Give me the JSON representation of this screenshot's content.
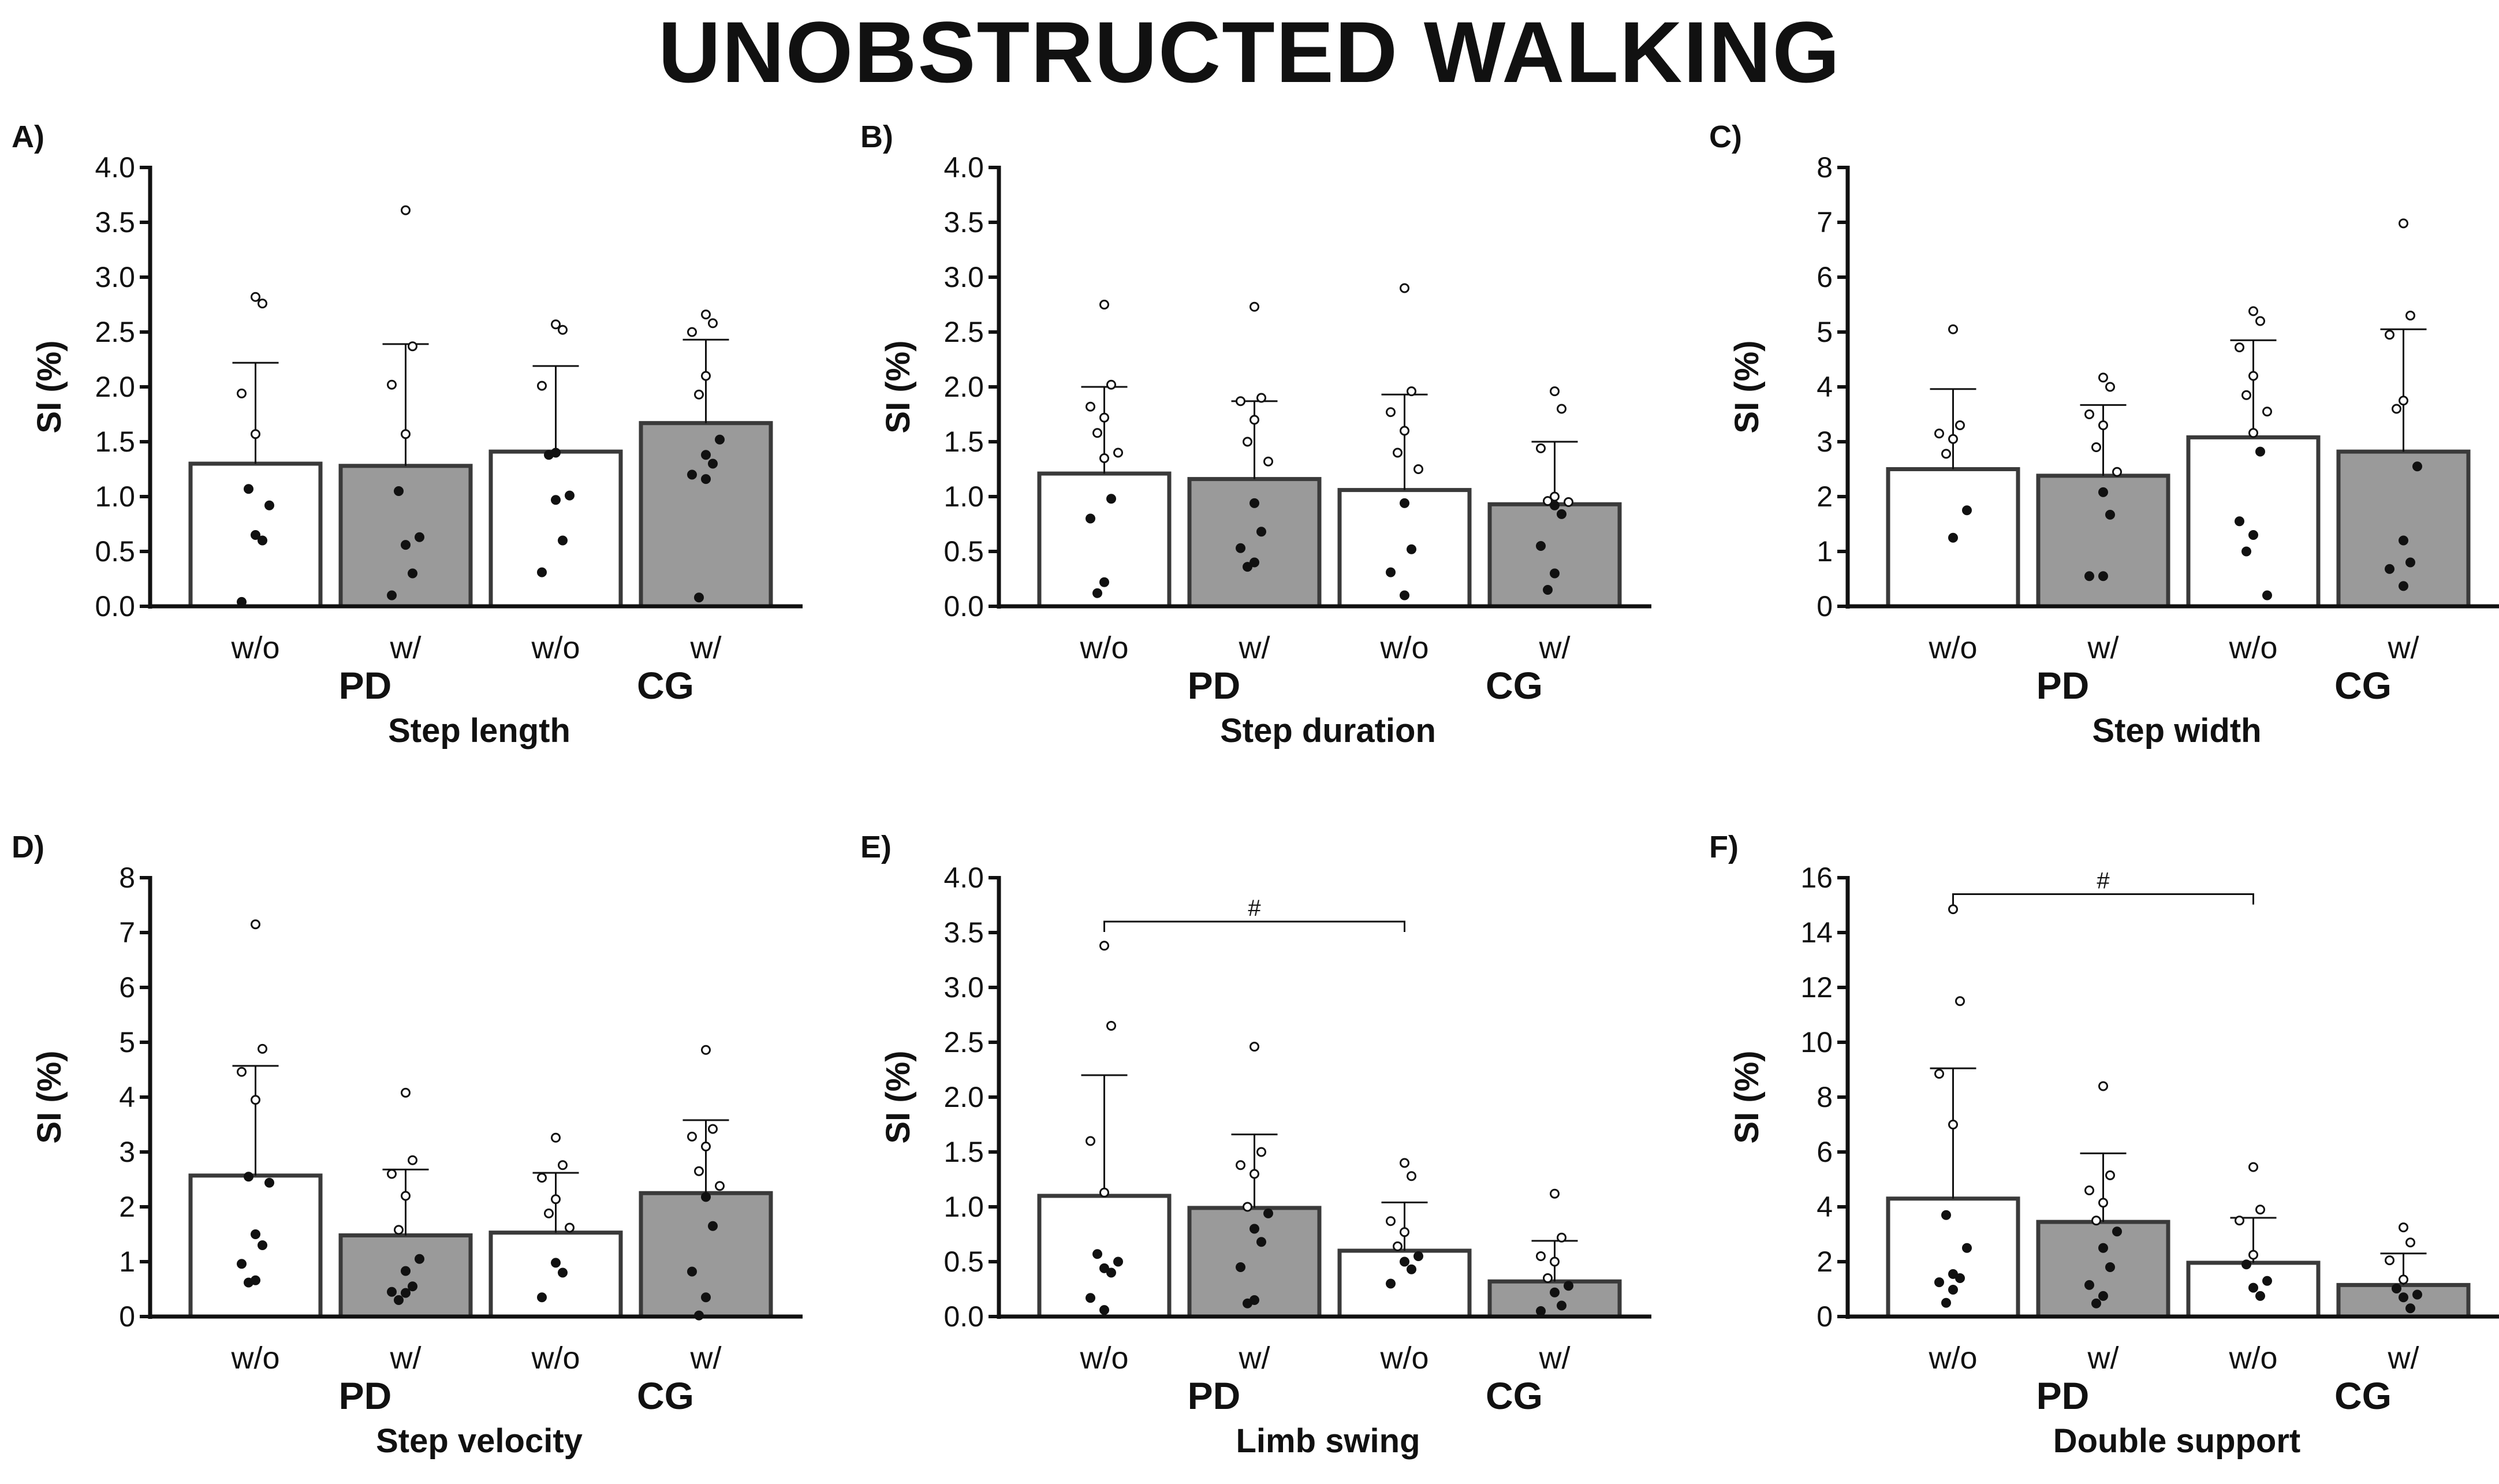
{
  "title": "UNOBSTRUCTED WALKING",
  "chart_data": [
    {
      "panel": "A)",
      "type": "bar",
      "title": "Step length",
      "ylabel": "SI (%)",
      "ylim": [
        0,
        4
      ],
      "yticks": [
        "0.0",
        "0.5",
        "1.0",
        "1.5",
        "2.0",
        "2.5",
        "3.0",
        "3.5",
        "4.0"
      ],
      "categories": [
        "w/o",
        "w/",
        "w/o",
        "w/"
      ],
      "groups": [
        "PD",
        "CG"
      ],
      "values": [
        1.3,
        1.28,
        1.41,
        1.67
      ],
      "sd_upper": [
        2.22,
        2.39,
        2.19,
        2.43
      ],
      "fills": [
        "#ffffff",
        "#9a9a9a",
        "#ffffff",
        "#9a9a9a"
      ],
      "points": [
        [
          2.82,
          2.76,
          1.94,
          1.57,
          1.07,
          0.92,
          0.65,
          0.6,
          0.04
        ],
        [
          3.61,
          2.37,
          2.02,
          1.57,
          1.05,
          0.63,
          0.56,
          0.3,
          0.1
        ],
        [
          2.57,
          2.52,
          2.01,
          1.4,
          1.38,
          1.01,
          0.97,
          0.6,
          0.31
        ],
        [
          2.66,
          2.58,
          2.5,
          2.1,
          1.93,
          1.52,
          1.38,
          1.3,
          1.2,
          1.16,
          0.08
        ]
      ],
      "significance": null
    },
    {
      "panel": "B)",
      "type": "bar",
      "title": "Step duration",
      "ylabel": "SI (%)",
      "ylim": [
        0,
        4
      ],
      "yticks": [
        "0.0",
        "0.5",
        "1.0",
        "1.5",
        "2.0",
        "2.5",
        "3.0",
        "3.5",
        "4.0"
      ],
      "categories": [
        "w/o",
        "w/",
        "w/o",
        "w/"
      ],
      "groups": [
        "PD",
        "CG"
      ],
      "values": [
        1.21,
        1.16,
        1.06,
        0.93
      ],
      "sd_upper": [
        2.0,
        1.87,
        1.93,
        1.5
      ],
      "fills": [
        "#ffffff",
        "#9a9a9a",
        "#ffffff",
        "#9a9a9a"
      ],
      "points": [
        [
          2.75,
          2.02,
          1.82,
          1.72,
          1.58,
          1.4,
          1.35,
          0.98,
          0.8,
          0.22,
          0.12
        ],
        [
          2.73,
          1.9,
          1.87,
          1.7,
          1.5,
          1.32,
          0.94,
          0.68,
          0.53,
          0.4,
          0.36
        ],
        [
          2.9,
          1.96,
          1.77,
          1.6,
          1.4,
          1.25,
          0.94,
          0.52,
          0.31,
          0.1
        ],
        [
          1.96,
          1.8,
          1.44,
          1.0,
          0.96,
          0.95,
          0.92,
          0.84,
          0.55,
          0.3,
          0.15
        ]
      ],
      "significance": null
    },
    {
      "panel": "C)",
      "type": "bar",
      "title": "Step width",
      "ylabel": "SI (%)",
      "ylim": [
        0,
        8
      ],
      "yticks": [
        "0",
        "1",
        "2",
        "3",
        "4",
        "5",
        "6",
        "7",
        "8"
      ],
      "categories": [
        "w/o",
        "w/",
        "w/o",
        "w/"
      ],
      "groups": [
        "PD",
        "CG"
      ],
      "values": [
        2.5,
        2.38,
        3.08,
        2.82
      ],
      "sd_upper": [
        3.96,
        3.67,
        4.85,
        5.05
      ],
      "fills": [
        "#ffffff",
        "#9a9a9a",
        "#ffffff",
        "#9a9a9a"
      ],
      "points": [
        [
          5.05,
          3.3,
          3.15,
          3.05,
          2.78,
          1.75,
          1.25
        ],
        [
          4.17,
          4.0,
          3.5,
          3.3,
          2.9,
          2.45,
          2.08,
          1.67,
          0.55,
          0.55
        ],
        [
          5.38,
          5.2,
          4.72,
          4.2,
          3.85,
          3.55,
          3.16,
          2.82,
          1.55,
          1.3,
          1.0,
          0.2
        ],
        [
          6.98,
          5.3,
          4.95,
          3.75,
          3.6,
          2.55,
          1.2,
          0.8,
          0.68,
          0.37
        ]
      ],
      "significance": null
    },
    {
      "panel": "D)",
      "type": "bar",
      "title": "Step velocity",
      "ylabel": "SI (%)",
      "ylim": [
        0,
        8
      ],
      "yticks": [
        "0",
        "1",
        "2",
        "3",
        "4",
        "5",
        "6",
        "7",
        "8"
      ],
      "categories": [
        "w/o",
        "w/",
        "w/o",
        "w/"
      ],
      "groups": [
        "PD",
        "CG"
      ],
      "values": [
        2.57,
        1.48,
        1.53,
        2.25
      ],
      "sd_upper": [
        4.57,
        2.68,
        2.62,
        3.58
      ],
      "fills": [
        "#ffffff",
        "#9a9a9a",
        "#ffffff",
        "#9a9a9a"
      ],
      "points": [
        [
          7.15,
          4.88,
          4.46,
          3.95,
          2.55,
          2.44,
          1.5,
          1.3,
          0.96,
          0.66,
          0.62
        ],
        [
          4.08,
          2.85,
          2.6,
          2.2,
          1.58,
          1.05,
          0.83,
          0.55,
          0.45,
          0.43,
          0.3
        ],
        [
          3.26,
          2.76,
          2.53,
          2.14,
          1.88,
          1.62,
          0.98,
          0.8,
          0.35
        ],
        [
          4.86,
          3.42,
          3.28,
          3.1,
          2.65,
          2.38,
          2.18,
          1.65,
          0.82,
          0.35,
          0.02
        ]
      ],
      "significance": null
    },
    {
      "panel": "E)",
      "type": "bar",
      "title": "Limb swing",
      "ylabel": "SI (%)",
      "ylim": [
        0,
        4
      ],
      "yticks": [
        "0.0",
        "0.5",
        "1.0",
        "1.5",
        "2.0",
        "2.5",
        "3.0",
        "3.5",
        "4.0"
      ],
      "categories": [
        "w/o",
        "w/",
        "w/o",
        "w/"
      ],
      "groups": [
        "PD",
        "CG"
      ],
      "values": [
        1.1,
        0.99,
        0.6,
        0.32
      ],
      "sd_upper": [
        2.2,
        1.66,
        1.04,
        0.69
      ],
      "fills": [
        "#ffffff",
        "#9a9a9a",
        "#ffffff",
        "#9a9a9a"
      ],
      "points": [
        [
          3.38,
          2.65,
          1.6,
          1.13,
          0.57,
          0.5,
          0.44,
          0.4,
          0.17,
          0.06
        ],
        [
          2.46,
          1.5,
          1.38,
          1.3,
          1.0,
          0.94,
          0.8,
          0.68,
          0.45,
          0.15,
          0.12
        ],
        [
          1.4,
          1.28,
          0.87,
          0.77,
          0.64,
          0.55,
          0.5,
          0.43,
          0.3
        ],
        [
          1.12,
          0.72,
          0.55,
          0.5,
          0.35,
          0.28,
          0.22,
          0.1,
          0.05
        ]
      ],
      "significance": {
        "label": "#",
        "from": 0,
        "to": 2,
        "level": 3.6
      }
    },
    {
      "panel": "F)",
      "type": "bar",
      "title": "Double support",
      "ylabel": "SI (%)",
      "ylim": [
        0,
        16
      ],
      "yticks": [
        "0",
        "2",
        "4",
        "6",
        "8",
        "10",
        "12",
        "14",
        "16"
      ],
      "categories": [
        "w/o",
        "w/",
        "w/o",
        "w/"
      ],
      "groups": [
        "PD",
        "CG"
      ],
      "values": [
        4.3,
        3.45,
        1.96,
        1.15
      ],
      "sd_upper": [
        9.05,
        5.95,
        3.6,
        2.3
      ],
      "fills": [
        "#ffffff",
        "#9a9a9a",
        "#ffffff",
        "#9a9a9a"
      ],
      "points": [
        [
          14.85,
          11.5,
          8.85,
          7.0,
          3.7,
          2.5,
          1.55,
          1.4,
          1.25,
          0.98,
          0.5
        ],
        [
          8.4,
          5.15,
          4.6,
          4.15,
          3.5,
          3.1,
          2.5,
          1.8,
          1.15,
          0.75,
          0.48
        ],
        [
          5.45,
          3.9,
          3.5,
          2.25,
          1.9,
          1.3,
          1.05,
          0.75
        ],
        [
          3.25,
          2.7,
          2.05,
          1.35,
          1.02,
          0.8,
          0.7,
          0.3
        ]
      ],
      "significance": {
        "label": "#",
        "from": 0,
        "to": 2,
        "level": 15.4
      }
    }
  ]
}
